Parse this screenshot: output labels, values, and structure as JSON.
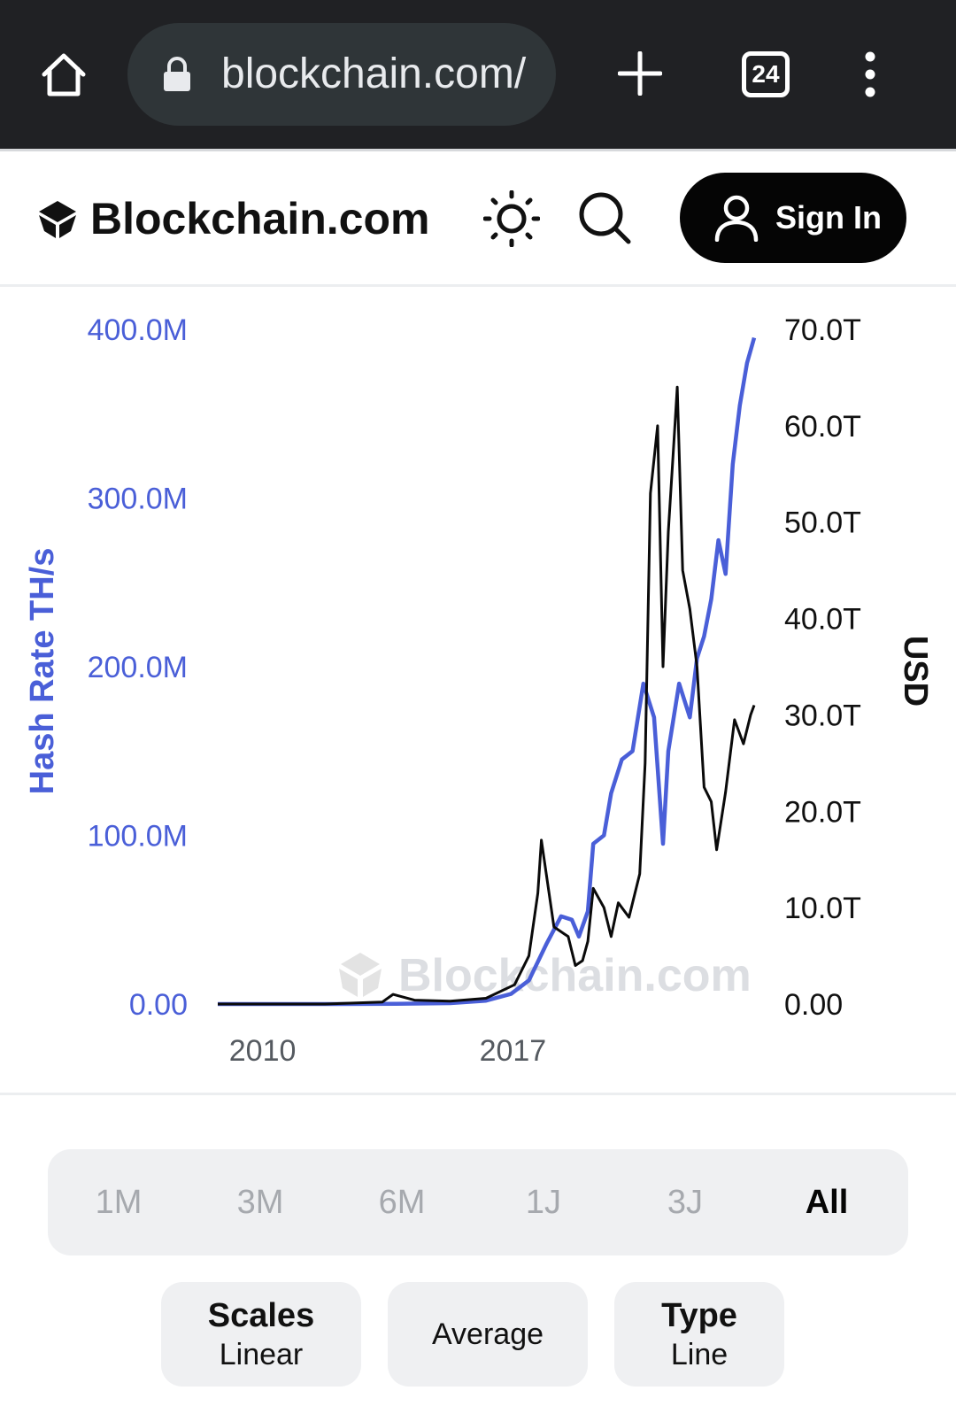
{
  "browser": {
    "url": "blockchain.com/",
    "tab_count": "24"
  },
  "header": {
    "brand": "Blockchain.com",
    "sign_in": "Sign In"
  },
  "chart_data": {
    "type": "line",
    "watermark": "Blockchain.com",
    "left_axis": {
      "label": "Hash Rate TH/s",
      "ticks": [
        "400.0M",
        "300.0M",
        "200.0M",
        "100.0M",
        "0.00"
      ],
      "range": [
        0,
        400
      ]
    },
    "right_axis": {
      "label": "USD",
      "ticks": [
        "70.0T",
        "60.0T",
        "50.0T",
        "40.0T",
        "30.0T",
        "20.0T",
        "10.0T",
        "0.00"
      ],
      "range": [
        0,
        70
      ]
    },
    "x_ticks": [
      "2010",
      "2017"
    ],
    "x_range": [
      2009.0,
      2024.0
    ],
    "series": [
      {
        "axis": "left",
        "color": "#4a5fd8",
        "unit": "M TH/s",
        "x": [
          2009.0,
          2012.0,
          2014.0,
          2015.5,
          2016.5,
          2017.2,
          2017.7,
          2018.2,
          2018.6,
          2018.9,
          2019.1,
          2019.35,
          2019.5,
          2019.8,
          2020.0,
          2020.3,
          2020.6,
          2020.9,
          2021.2,
          2021.45,
          2021.6,
          2021.9,
          2022.2,
          2022.4,
          2022.6,
          2022.8,
          2023.0,
          2023.2,
          2023.4,
          2023.6,
          2023.8,
          2024.0
        ],
        "y": [
          0,
          0,
          0.1,
          0.5,
          2,
          6,
          14,
          36,
          52,
          50,
          40,
          55,
          95,
          100,
          125,
          145,
          150,
          190,
          170,
          95,
          150,
          190,
          170,
          205,
          218,
          240,
          275,
          255,
          320,
          355,
          380,
          395
        ]
      },
      {
        "axis": "right",
        "color": "#0a0a0a",
        "unit": "T USD",
        "x": [
          2009.0,
          2012.0,
          2013.6,
          2013.9,
          2014.5,
          2015.5,
          2016.5,
          2017.3,
          2017.7,
          2017.95,
          2018.05,
          2018.4,
          2018.8,
          2019.0,
          2019.2,
          2019.35,
          2019.5,
          2019.8,
          2020.0,
          2020.2,
          2020.5,
          2020.8,
          2020.95,
          2021.1,
          2021.3,
          2021.45,
          2021.6,
          2021.75,
          2021.85,
          2022.0,
          2022.2,
          2022.4,
          2022.6,
          2022.8,
          2022.95,
          2023.2,
          2023.45,
          2023.7,
          2023.9,
          2024.0
        ],
        "y": [
          0,
          0,
          0.2,
          1.0,
          0.4,
          0.3,
          0.6,
          2.0,
          5.0,
          11.5,
          17.0,
          8.0,
          7.0,
          4.0,
          4.5,
          6.5,
          12.0,
          10.0,
          7.0,
          10.5,
          9.0,
          13.5,
          25.0,
          53.0,
          60.0,
          35.0,
          49.0,
          58.0,
          64.0,
          45.0,
          41.0,
          35.0,
          22.5,
          21.0,
          16.0,
          22.0,
          29.5,
          27.0,
          30.0,
          31.0
        ]
      }
    ]
  },
  "periods": [
    "1M",
    "3M",
    "6M",
    "1J",
    "3J",
    "All"
  ],
  "active_period": "All",
  "options": {
    "scales_title": "Scales",
    "scales_value": "Linear",
    "average": "Average",
    "type_title": "Type",
    "type_value": "Line"
  }
}
